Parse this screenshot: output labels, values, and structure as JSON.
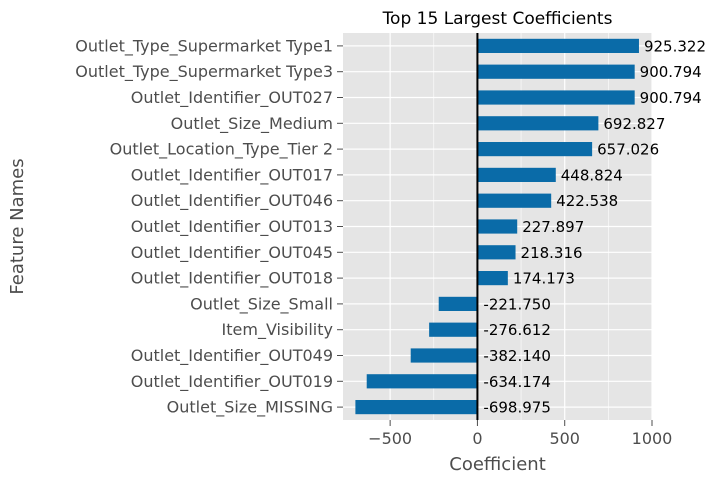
{
  "chart_data": {
    "type": "bar",
    "orientation": "horizontal",
    "title": "Top 15 Largest Coefficients",
    "xlabel": "Coefficient",
    "ylabel": "Feature Names",
    "xlim": [
      -770,
      1000
    ],
    "xticks": [
      -500,
      0,
      500,
      1000
    ],
    "xtick_labels": [
      "−500",
      "0",
      "500",
      "1000"
    ],
    "grid": true,
    "legend": "none",
    "bar_color": "#0a6ba8",
    "background_color": "#e5e5e5",
    "grid_color": "#ffffff",
    "zero_line_color": "#000000",
    "categories": [
      "Outlet_Type_Supermarket Type1",
      "Outlet_Type_Supermarket Type3",
      "Outlet_Identifier_OUT027",
      "Outlet_Size_Medium",
      "Outlet_Location_Type_Tier 2",
      "Outlet_Identifier_OUT017",
      "Outlet_Identifier_OUT046",
      "Outlet_Identifier_OUT013",
      "Outlet_Identifier_OUT045",
      "Outlet_Identifier_OUT018",
      "Outlet_Size_Small",
      "Item_Visibility",
      "Outlet_Identifier_OUT049",
      "Outlet_Identifier_OUT019",
      "Outlet_Size_MISSING"
    ],
    "values": [
      925.322,
      900.794,
      900.794,
      692.827,
      657.026,
      448.824,
      422.538,
      227.897,
      218.316,
      174.173,
      -221.75,
      -276.612,
      -382.14,
      -634.174,
      -698.975
    ],
    "value_labels": [
      "925.322",
      "900.794",
      "900.794",
      "692.827",
      "657.026",
      "448.824",
      "422.538",
      "227.897",
      "218.316",
      "174.173",
      "-221.750",
      "-276.612",
      "-382.140",
      "-634.174",
      "-698.975"
    ]
  }
}
